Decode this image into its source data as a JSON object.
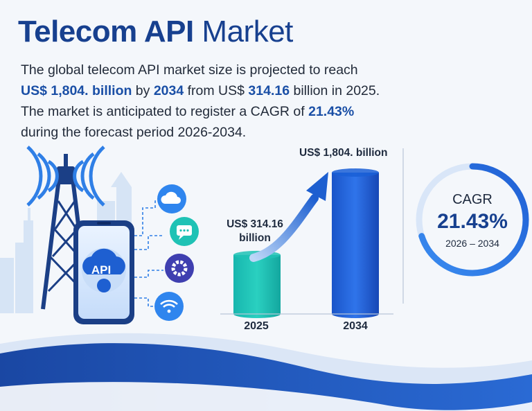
{
  "title": {
    "bold": "Telecom API",
    "light": "Market"
  },
  "description": {
    "line1": "The global telecom API market size is projected to reach",
    "line2_value": "US$ 1,804. billion",
    "line2_by": " by ",
    "line2_year": "2034",
    "line2_from": " from US$ ",
    "line2_base": "314.16",
    "line2_end": " billion in 2025.",
    "line3_start": "The market is anticipated to register a CAGR of ",
    "line3_cagr": "21.43%",
    "line4": "during the forecast period 2026-2034."
  },
  "illustration": {
    "phone_label": "API",
    "icons": [
      "cloud-icon",
      "chat-icon",
      "gear-icon",
      "wifi-icon"
    ],
    "tower": "radio-tower-icon"
  },
  "colors": {
    "title": "#17408f",
    "highlight": "#1a4fa6",
    "bar_2025": "#1fc2b5",
    "bar_2034": "#1a5fd6",
    "ring": "#2f7fe6",
    "wave": "#1b4fb0"
  },
  "chart_data": {
    "type": "bar",
    "categories": [
      "2025",
      "2034"
    ],
    "values": [
      314.16,
      1804
    ],
    "value_labels": [
      "US$ 314.16 billion",
      "US$ 1,804. billion"
    ],
    "unit": "US$ billion",
    "title": "",
    "xlabel": "",
    "ylabel": "",
    "grid": false,
    "legend": "none",
    "annotation": "growth-arrow-2025-to-2034"
  },
  "cagr": {
    "label": "CAGR",
    "value": "21.43%",
    "period": "2026 – 2034",
    "fraction": 0.7
  }
}
